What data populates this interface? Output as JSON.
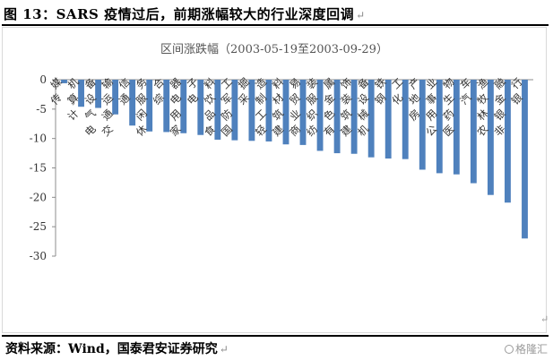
{
  "figure": {
    "title": "图 13：SARS 疫情过后，前期涨幅较大的行业深度回调",
    "return_mark": "↵",
    "source": "资料来源：Wind，国泰君安证券研究",
    "watermark": "格隆汇"
  },
  "chart_data": {
    "type": "bar",
    "title": "区间涨跌幅（2003-05-19至2003-09-29）",
    "xlabel": "",
    "ylabel": "",
    "ylim": [
      -30,
      0
    ],
    "yticks": [
      0,
      -5,
      -10,
      -15,
      -20,
      -25,
      -30
    ],
    "grid": false,
    "legend": "none",
    "bar_color": "#4f81bd",
    "categories": [
      "传媒",
      "计算机",
      "电气设备",
      "交通运输",
      "通信",
      "休闲服务",
      "综合",
      "家用电器",
      "电子",
      "食品饮料",
      "国防军工",
      "采掘",
      "轻工制造",
      "建筑材料",
      "商业贸易",
      "纺织服装",
      "有色金属",
      "建筑装饰",
      "机械设备",
      "钢铁",
      "化工",
      "房地产",
      "公用事业",
      "医药生物",
      "汽车",
      "农林牧渔",
      "非银金融",
      "银行"
    ],
    "values": [
      -0.6,
      -4.6,
      -4.8,
      -5.9,
      -7.8,
      -8.8,
      -8.9,
      -9.1,
      -9.4,
      -10.2,
      -10.3,
      -10.4,
      -10.5,
      -11.0,
      -11.1,
      -12.1,
      -12.5,
      -12.6,
      -13.2,
      -13.4,
      -13.5,
      -15.3,
      -15.9,
      -16.1,
      -17.6,
      -19.6,
      -20.9,
      -27.0
    ]
  }
}
